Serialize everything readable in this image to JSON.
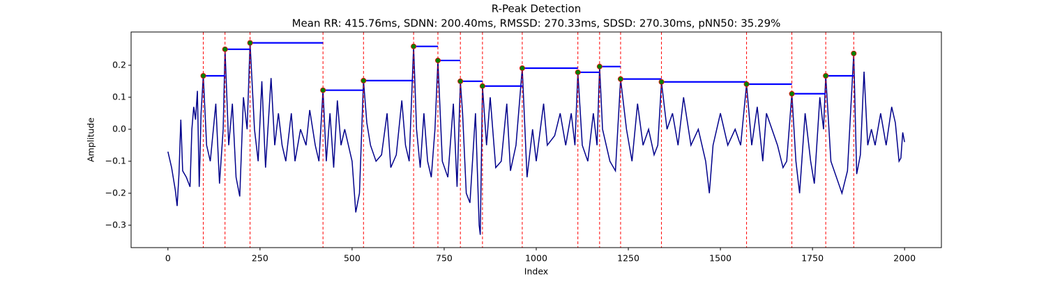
{
  "chart_data": {
    "type": "line",
    "title": "R-Peak Detection",
    "subtitle": "Mean RR: 415.76ms, SDNN: 200.40ms, RMSSD: 270.33ms, SDSD: 270.30ms, pNN50: 35.29%",
    "xlabel": "Index",
    "ylabel": "Amplitude",
    "xlim": [
      -100,
      2100
    ],
    "ylim": [
      -0.37,
      0.304
    ],
    "xticks": [
      0,
      250,
      500,
      750,
      1000,
      1250,
      1500,
      1750,
      2000
    ],
    "yticks": [
      {
        "value": -0.3,
        "label": "−0.3"
      },
      {
        "value": -0.2,
        "label": "−0.2"
      },
      {
        "value": -0.1,
        "label": "−0.1"
      },
      {
        "value": 0,
        "label": "0.0"
      },
      0.1,
      0.2
    ],
    "signal": {
      "color": "#00008b",
      "x": [
        0,
        10,
        20,
        25,
        30,
        35,
        40,
        50,
        60,
        65,
        70,
        75,
        80,
        85,
        90,
        96,
        105,
        115,
        130,
        140,
        150,
        155,
        165,
        175,
        185,
        195,
        205,
        215,
        223,
        235,
        245,
        255,
        265,
        280,
        290,
        300,
        310,
        320,
        335,
        345,
        360,
        375,
        385,
        400,
        410,
        421,
        430,
        440,
        450,
        460,
        470,
        480,
        490,
        500,
        510,
        520,
        531,
        540,
        550,
        565,
        580,
        595,
        605,
        620,
        635,
        645,
        655,
        667,
        675,
        685,
        695,
        705,
        715,
        725,
        733,
        745,
        760,
        775,
        785,
        794,
        800,
        810,
        820,
        835,
        845,
        848,
        854,
        865,
        875,
        890,
        905,
        920,
        930,
        945,
        962,
        975,
        990,
        1000,
        1020,
        1030,
        1050,
        1065,
        1080,
        1095,
        1105,
        1113,
        1125,
        1140,
        1155,
        1165,
        1172,
        1180,
        1190,
        1200,
        1215,
        1229,
        1245,
        1260,
        1275,
        1290,
        1305,
        1320,
        1330,
        1340,
        1355,
        1370,
        1385,
        1400,
        1420,
        1440,
        1460,
        1470,
        1480,
        1500,
        1520,
        1540,
        1555,
        1571,
        1585,
        1600,
        1615,
        1625,
        1640,
        1655,
        1670,
        1680,
        1694,
        1705,
        1715,
        1730,
        1745,
        1755,
        1770,
        1780,
        1786,
        1800,
        1815,
        1830,
        1845,
        1862,
        1870,
        1880,
        1890,
        1900,
        1910,
        1920,
        1935,
        1950,
        1965,
        1975,
        1985,
        1990,
        1995,
        2000
      ],
      "values": [
        -0.07,
        -0.12,
        -0.19,
        -0.24,
        -0.14,
        0.03,
        -0.13,
        -0.15,
        -0.18,
        0.0,
        0.07,
        0.03,
        0.12,
        -0.18,
        0.05,
        0.167,
        -0.05,
        -0.1,
        0.08,
        -0.17,
        0.0,
        0.25,
        -0.05,
        0.08,
        -0.15,
        -0.21,
        0.1,
        0.0,
        0.27,
        0.0,
        -0.1,
        0.15,
        -0.12,
        0.16,
        -0.05,
        0.05,
        -0.05,
        -0.1,
        0.05,
        -0.1,
        0.0,
        -0.05,
        0.06,
        -0.05,
        -0.1,
        0.122,
        -0.1,
        0.05,
        -0.12,
        0.09,
        -0.05,
        0.0,
        -0.05,
        -0.1,
        -0.26,
        -0.2,
        0.152,
        0.02,
        -0.05,
        -0.1,
        -0.08,
        0.05,
        -0.12,
        -0.08,
        0.09,
        -0.05,
        -0.1,
        0.259,
        0.0,
        -0.12,
        0.05,
        -0.1,
        -0.15,
        0.0,
        0.215,
        -0.1,
        -0.15,
        0.08,
        -0.18,
        0.15,
        0.05,
        -0.2,
        -0.23,
        0.05,
        -0.3,
        -0.33,
        0.135,
        -0.05,
        0.1,
        -0.12,
        -0.1,
        0.08,
        -0.13,
        -0.05,
        0.191,
        -0.15,
        0.0,
        -0.1,
        0.08,
        -0.05,
        -0.02,
        0.05,
        -0.05,
        0.05,
        -0.05,
        0.178,
        -0.05,
        -0.1,
        0.05,
        -0.05,
        0.196,
        0.0,
        -0.05,
        -0.1,
        -0.13,
        0.157,
        0.0,
        -0.1,
        0.08,
        -0.05,
        0.0,
        -0.08,
        -0.05,
        0.148,
        0.0,
        0.05,
        -0.05,
        0.1,
        -0.05,
        0.0,
        -0.1,
        -0.2,
        -0.05,
        0.05,
        -0.05,
        0.0,
        -0.05,
        0.141,
        -0.05,
        0.07,
        -0.1,
        0.05,
        0.0,
        -0.05,
        -0.12,
        -0.1,
        0.111,
        -0.1,
        -0.2,
        0.05,
        -0.1,
        -0.17,
        0.1,
        0.0,
        0.167,
        -0.1,
        -0.15,
        -0.2,
        -0.13,
        0.237,
        -0.14,
        -0.08,
        0.18,
        -0.05,
        0.0,
        -0.05,
        0.05,
        -0.05,
        0.07,
        0.02,
        -0.1,
        -0.09,
        -0.01,
        -0.04
      ]
    },
    "peaks": {
      "color": "green",
      "x": [
        96,
        155,
        223,
        421,
        531,
        667,
        733,
        794,
        854,
        962,
        1113,
        1172,
        1229,
        1340,
        1571,
        1694,
        1786,
        1862
      ],
      "values": [
        0.167,
        0.25,
        0.27,
        0.122,
        0.152,
        0.259,
        0.215,
        0.15,
        0.135,
        0.191,
        0.178,
        0.196,
        0.157,
        0.148,
        0.141,
        0.111,
        0.167,
        0.237
      ]
    },
    "peak_line_color": "red",
    "rr_line_color": "blue"
  }
}
